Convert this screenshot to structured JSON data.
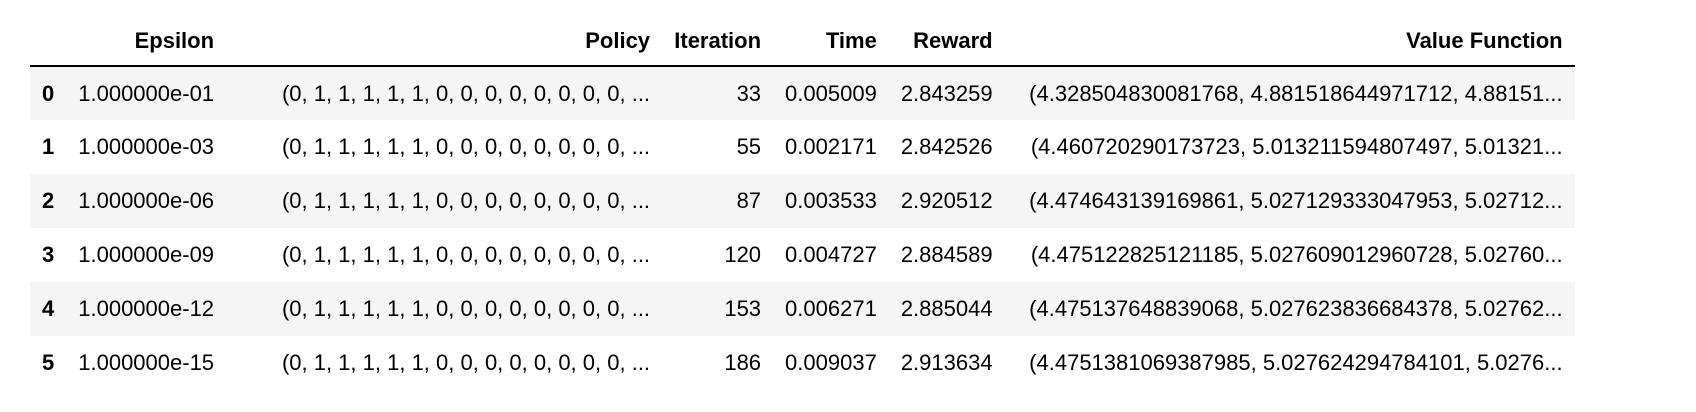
{
  "table": {
    "columns": [
      "",
      "Epsilon",
      "Policy",
      "Iteration",
      "Time",
      "Reward",
      "Value Function"
    ],
    "rows": [
      [
        "0",
        "1.000000e-01",
        "(0, 1, 1, 1, 1, 1, 0, 0, 0, 0, 0, 0, 0, 0, ...",
        "33",
        "0.005009",
        "2.843259",
        "(4.328504830081768, 4.881518644971712, 4.88151..."
      ],
      [
        "1",
        "1.000000e-03",
        "(0, 1, 1, 1, 1, 1, 0, 0, 0, 0, 0, 0, 0, 0, ...",
        "55",
        "0.002171",
        "2.842526",
        "(4.460720290173723, 5.013211594807497, 5.01321..."
      ],
      [
        "2",
        "1.000000e-06",
        "(0, 1, 1, 1, 1, 1, 0, 0, 0, 0, 0, 0, 0, 0, ...",
        "87",
        "0.003533",
        "2.920512",
        "(4.474643139169861, 5.027129333047953, 5.02712..."
      ],
      [
        "3",
        "1.000000e-09",
        "(0, 1, 1, 1, 1, 1, 0, 0, 0, 0, 0, 0, 0, 0, ...",
        "120",
        "0.004727",
        "2.884589",
        "(4.475122825121185, 5.027609012960728, 5.02760..."
      ],
      [
        "4",
        "1.000000e-12",
        "(0, 1, 1, 1, 1, 1, 0, 0, 0, 0, 0, 0, 0, 0, ...",
        "153",
        "0.006271",
        "2.885044",
        "(4.475137648839068, 5.027623836684378, 5.02762..."
      ],
      [
        "5",
        "1.000000e-15",
        "(0, 1, 1, 1, 1, 1, 0, 0, 0, 0, 0, 0, 0, 0, ...",
        "186",
        "0.009037",
        "2.913634",
        "(4.4751381069387985, 5.027624294784101, 5.0276..."
      ]
    ]
  }
}
